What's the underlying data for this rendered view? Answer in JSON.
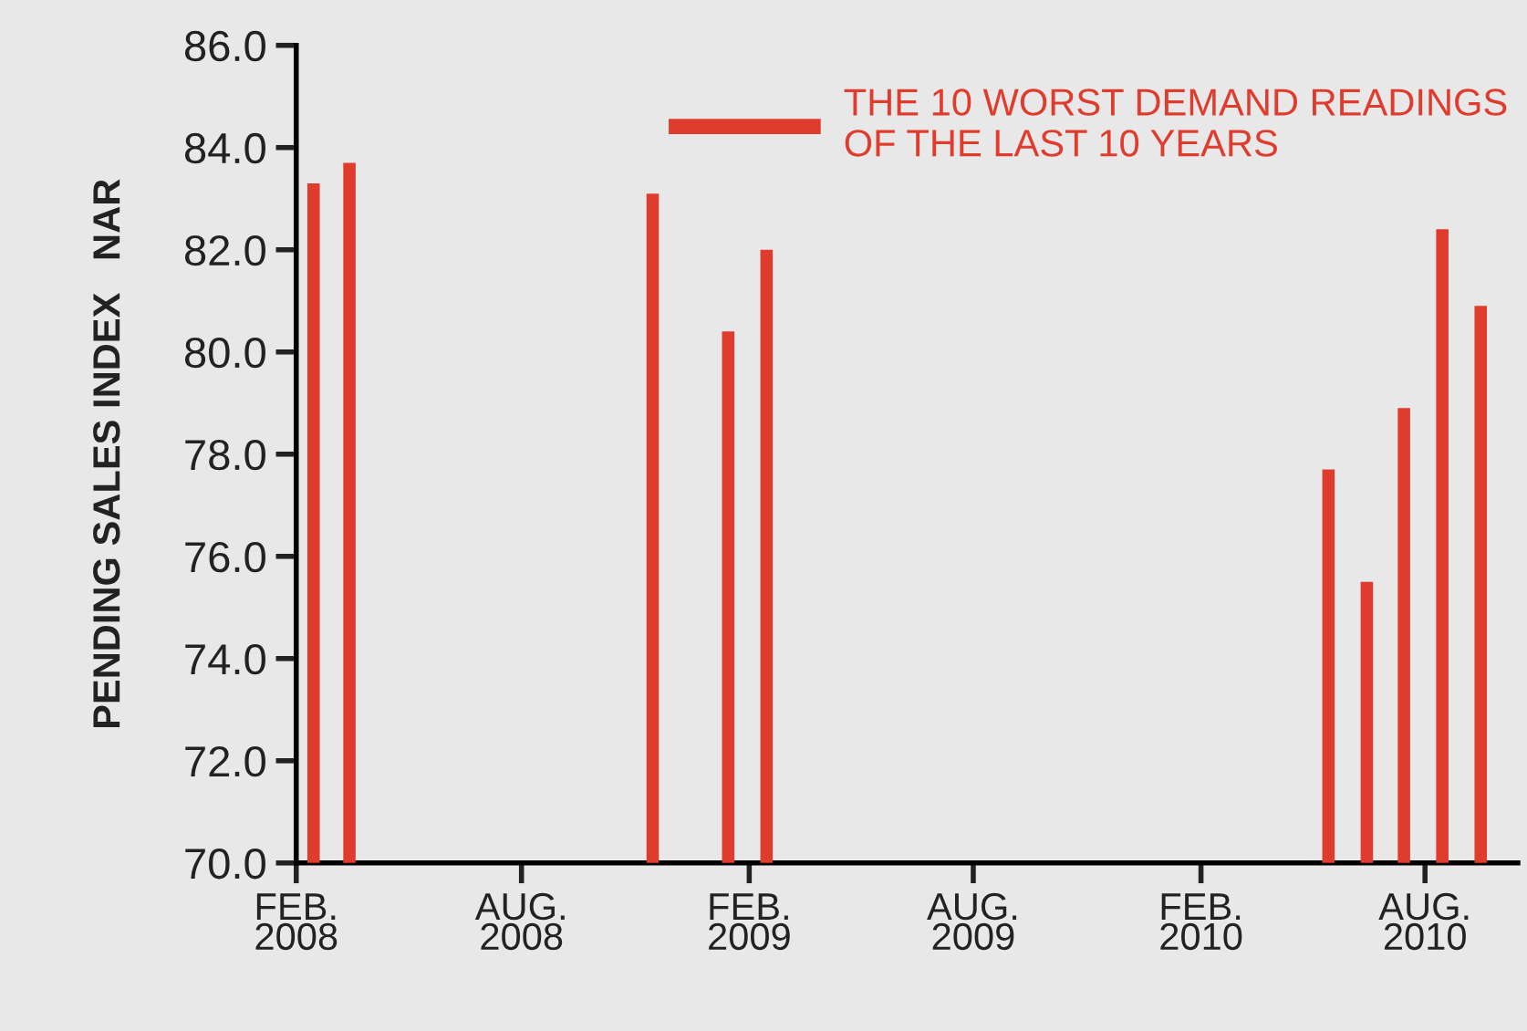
{
  "chart_data": {
    "type": "bar",
    "ylabel": "PENDING SALES INDEX   NAR",
    "x": [
      "2008-02-15",
      "2008-03-15",
      "2008-11-15",
      "2009-01-15",
      "2009-02-15",
      "2010-05-15",
      "2010-06-15",
      "2010-07-15",
      "2010-08-15",
      "2010-09-15"
    ],
    "series": [
      {
        "name": "THE 10 WORST DEMAND READINGS\nOF THE LAST 10 YEARS",
        "color": "#e03c2e",
        "values": [
          83.3,
          83.7,
          83.1,
          80.4,
          82.0,
          77.7,
          75.5,
          78.9,
          82.4,
          80.9
        ]
      }
    ],
    "xlim": [
      "2008-02-01",
      "2010-10-15"
    ],
    "xticks": [
      {
        "value": "2008-02-01",
        "label": "FEB.\n2008"
      },
      {
        "value": "2008-08-01",
        "label": "AUG.\n2008"
      },
      {
        "value": "2009-02-01",
        "label": "FEB.\n2009"
      },
      {
        "value": "2009-08-01",
        "label": "AUG.\n2009"
      },
      {
        "value": "2010-02-01",
        "label": "FEB.\n2010"
      },
      {
        "value": "2010-08-01",
        "label": "AUG.\n2010"
      }
    ],
    "ylim": [
      70,
      86
    ],
    "yticks": [
      {
        "value": 70,
        "label": "70.0"
      },
      {
        "value": 72,
        "label": "72.0"
      },
      {
        "value": 74,
        "label": "74.0"
      },
      {
        "value": 76,
        "label": "76.0"
      },
      {
        "value": 78,
        "label": "78.0"
      },
      {
        "value": 80,
        "label": "80.0"
      },
      {
        "value": 82,
        "label": "82.0"
      },
      {
        "value": 84,
        "label": "84.0"
      },
      {
        "value": 86,
        "label": "86.0"
      }
    ],
    "grid": false,
    "legend": "top right"
  }
}
